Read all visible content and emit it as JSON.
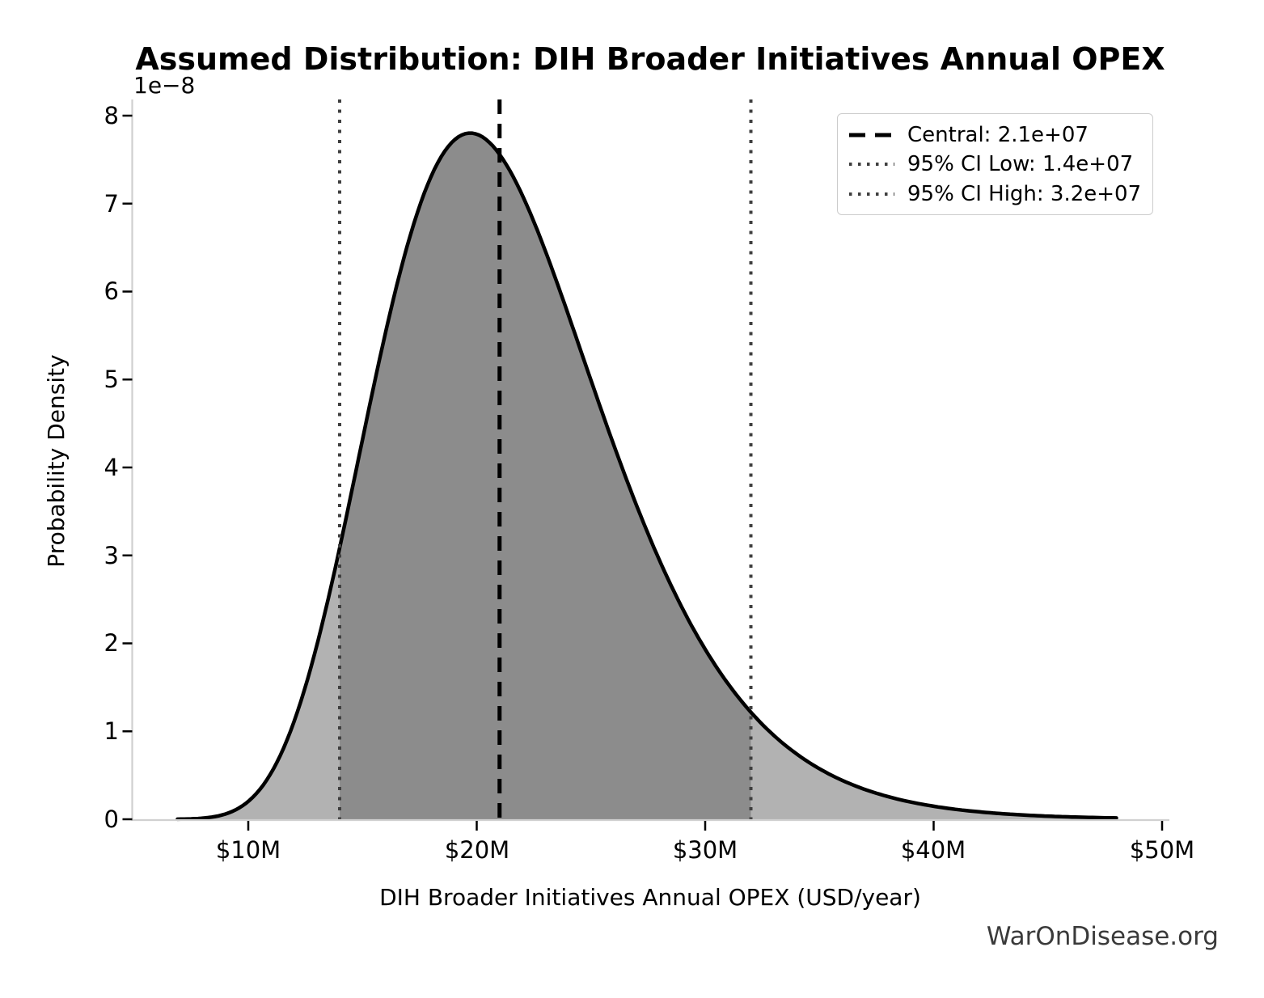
{
  "watermark": "WarOnDisease.org",
  "chart_data": {
    "type": "area",
    "title": "Assumed Distribution: DIH Broader Initiatives Annual OPEX",
    "xlabel": "DIH Broader Initiatives Annual OPEX (USD/year)",
    "ylabel": "Probability Density",
    "y_offset_label": "1e−8",
    "grid": false,
    "legend_position": "upper right",
    "x_tick_labels": [
      "$10M",
      "$20M",
      "$30M",
      "$40M",
      "$50M"
    ],
    "x_tick_values": [
      10000000,
      20000000,
      30000000,
      40000000,
      50000000
    ],
    "y_tick_labels": [
      "0",
      "1",
      "2",
      "3",
      "4",
      "5",
      "6",
      "7",
      "8"
    ],
    "y_tick_values_e8": [
      0,
      1,
      2,
      3,
      4,
      5,
      6,
      7,
      8
    ],
    "xlim": [
      4850000,
      50300000
    ],
    "ylim_e8": [
      0,
      8.14
    ],
    "distribution": {
      "family": "lognormal",
      "median": 21000000,
      "sigma_log": 0.2513,
      "mode": 19710000,
      "peak_density_e8": 7.79,
      "x_start": 6900000,
      "x_end": 48000000
    },
    "markers": {
      "central": {
        "value": 21000000,
        "label": "Central: 2.1e+07",
        "style": "dashed",
        "color": "#000000"
      },
      "ci_low": {
        "value": 14000000,
        "label": "95% CI Low: 1.4e+07",
        "style": "dotted",
        "color": "#3f3f3f"
      },
      "ci_high": {
        "value": 32000000,
        "label": "95% CI High: 3.2e+07",
        "style": "dotted",
        "color": "#3f3f3f"
      }
    },
    "fills": {
      "under_curve": "#b2b2b2",
      "ci_band": "#8c8c8c"
    },
    "curve_points_e8_x_in_millions": [
      [
        7,
        0.002
      ],
      [
        8,
        0.012
      ],
      [
        9,
        0.06
      ],
      [
        10,
        0.203
      ],
      [
        11,
        0.527
      ],
      [
        12,
        1.109
      ],
      [
        13,
        1.977
      ],
      [
        14,
        3.085
      ],
      [
        15,
        4.319
      ],
      [
        16,
        5.525
      ],
      [
        17,
        6.557
      ],
      [
        18,
        7.306
      ],
      [
        19,
        7.718
      ],
      [
        20,
        7.788
      ],
      [
        21,
        7.559
      ],
      [
        22,
        7.092
      ],
      [
        23,
        6.463
      ],
      [
        24,
        5.743
      ],
      [
        25,
        4.991
      ],
      [
        26,
        4.254
      ],
      [
        27,
        3.565
      ],
      [
        28,
        2.944
      ],
      [
        29,
        2.399
      ],
      [
        30,
        1.932
      ],
      [
        32,
        1.217
      ],
      [
        34,
        0.743
      ],
      [
        36,
        0.442
      ],
      [
        38,
        0.258
      ],
      [
        40,
        0.148
      ],
      [
        42,
        0.084
      ],
      [
        44,
        0.047
      ],
      [
        46,
        0.027
      ],
      [
        48,
        0.015
      ]
    ]
  }
}
